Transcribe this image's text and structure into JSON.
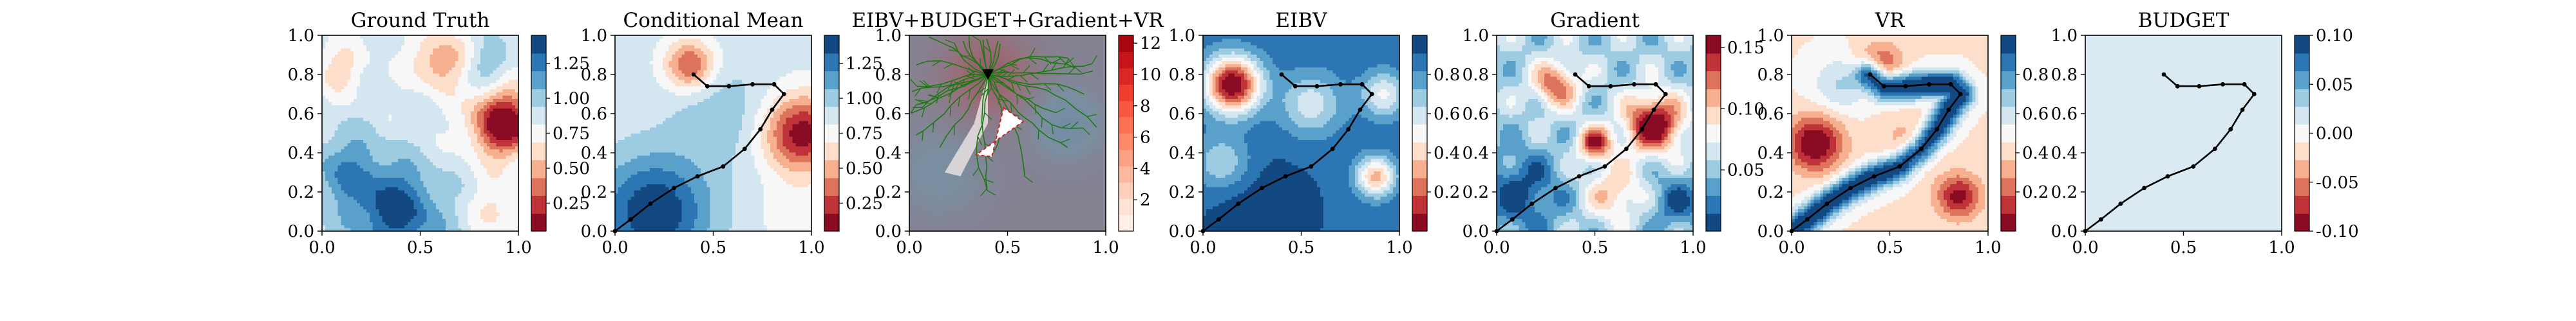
{
  "chart_data": [
    {
      "type": "heatmap",
      "title": "Ground Truth",
      "xlim": [
        0,
        1
      ],
      "ylim": [
        0,
        1
      ],
      "xticks": [
        "0.0",
        "0.5",
        "1.0"
      ],
      "yticks": [
        "0.0",
        "0.2",
        "0.4",
        "0.6",
        "0.8",
        "1.0"
      ],
      "colormap": "RdBu",
      "colorbar": {
        "ticks": [
          "0.25",
          "0.50",
          "0.75",
          "1.00",
          "1.25"
        ],
        "range": [
          0.05,
          1.45
        ]
      },
      "features": [
        {
          "kind": "low",
          "x": 0.92,
          "y": 0.55,
          "value": 0.2,
          "note": "red hot spot right"
        },
        {
          "kind": "low",
          "x": 0.62,
          "y": 0.86,
          "value": 0.6,
          "note": "light red top middle"
        },
        {
          "kind": "high",
          "x": 0.38,
          "y": 0.12,
          "value": 1.4,
          "note": "dark blue bottom"
        }
      ]
    },
    {
      "type": "heatmap",
      "title": "Conditional Mean",
      "xlim": [
        0,
        1
      ],
      "ylim": [
        0,
        1
      ],
      "xticks": [
        "0.0",
        "0.5",
        "1.0"
      ],
      "yticks": [
        "0.0",
        "0.2",
        "0.4",
        "0.6",
        "0.8",
        "1.0"
      ],
      "colormap": "RdBu",
      "colorbar": {
        "ticks": [
          "0.25",
          "0.50",
          "0.75",
          "1.00",
          "1.25"
        ],
        "range": [
          0.05,
          1.45
        ]
      },
      "path": [
        [
          0.0,
          0.0
        ],
        [
          0.08,
          0.06
        ],
        [
          0.18,
          0.14
        ],
        [
          0.3,
          0.22
        ],
        [
          0.42,
          0.28
        ],
        [
          0.55,
          0.33
        ],
        [
          0.66,
          0.42
        ],
        [
          0.74,
          0.52
        ],
        [
          0.8,
          0.62
        ],
        [
          0.86,
          0.7
        ],
        [
          0.81,
          0.75
        ],
        [
          0.7,
          0.75
        ],
        [
          0.58,
          0.74
        ],
        [
          0.47,
          0.74
        ],
        [
          0.4,
          0.8
        ]
      ]
    },
    {
      "type": "heatmap",
      "title": "EIBV+BUDGET+Gradient+VR",
      "xlim": [
        0,
        1
      ],
      "ylim": [
        0,
        1
      ],
      "xticks": [
        "0.0",
        "0.5",
        "1.0"
      ],
      "yticks": [
        "0.0",
        "0.2",
        "0.4",
        "0.6",
        "0.8",
        "1.0"
      ],
      "colormap": "Reds",
      "colorbar": {
        "ticks": [
          "2",
          "4",
          "6",
          "8",
          "10",
          "12"
        ],
        "range": [
          0,
          12.5
        ]
      },
      "annotations": [
        "green tree of candidate paths rooted near (0.40, 0.80)",
        "red dashed triangle near (0.38, 0.50)"
      ]
    },
    {
      "type": "heatmap",
      "title": "EIBV",
      "xlim": [
        0,
        1
      ],
      "ylim": [
        0,
        1
      ],
      "xticks": [
        "0.0",
        "0.5",
        "1.0"
      ],
      "yticks": [
        "0.0",
        "0.2",
        "0.4",
        "0.6",
        "0.8",
        "1.0"
      ],
      "colormap": "RdBu",
      "colorbar": {
        "ticks": [
          "0.2",
          "0.4",
          "0.6",
          "0.8"
        ],
        "range": [
          0.0,
          1.0
        ]
      }
    },
    {
      "type": "heatmap",
      "title": "Gradient",
      "xlim": [
        0,
        1
      ],
      "ylim": [
        0,
        1
      ],
      "xticks": [
        "0.0",
        "0.5",
        "1.0"
      ],
      "yticks": [
        "0.0",
        "0.2",
        "0.4",
        "0.6",
        "0.8",
        "1.0"
      ],
      "colormap": "RdBu",
      "colorbar": {
        "ticks": [
          "0.05",
          "0.10",
          "0.15"
        ],
        "range": [
          0.0,
          0.16
        ]
      }
    },
    {
      "type": "heatmap",
      "title": "VR",
      "xlim": [
        0,
        1
      ],
      "ylim": [
        0,
        1
      ],
      "xticks": [
        "0.0",
        "0.5",
        "1.0"
      ],
      "yticks": [
        "0.0",
        "0.2",
        "0.4",
        "0.6",
        "0.8",
        "1.0"
      ],
      "colormap": "RdBu",
      "colorbar": {
        "ticks": [
          "0.2",
          "0.4",
          "0.6",
          "0.8"
        ],
        "range": [
          0.0,
          1.0
        ]
      }
    },
    {
      "type": "line",
      "title": "BUDGET",
      "xlim": [
        0,
        1
      ],
      "ylim": [
        0,
        1
      ],
      "xticks": [
        "0.0",
        "0.5",
        "1.0"
      ],
      "yticks": [
        "0.0",
        "0.2",
        "0.4",
        "0.6",
        "0.8",
        "1.0"
      ],
      "colormap": "RdBu",
      "colorbar": {
        "ticks": [
          "-0.10",
          "-0.05",
          "0.00",
          "0.05",
          "0.10"
        ],
        "range": [
          -0.1,
          0.1
        ]
      },
      "background_value": 0.0,
      "path": [
        [
          0.0,
          0.0
        ],
        [
          0.08,
          0.06
        ],
        [
          0.18,
          0.14
        ],
        [
          0.3,
          0.22
        ],
        [
          0.42,
          0.28
        ],
        [
          0.55,
          0.33
        ],
        [
          0.66,
          0.42
        ],
        [
          0.74,
          0.52
        ],
        [
          0.8,
          0.62
        ],
        [
          0.86,
          0.7
        ],
        [
          0.81,
          0.75
        ],
        [
          0.7,
          0.75
        ],
        [
          0.58,
          0.74
        ],
        [
          0.47,
          0.74
        ],
        [
          0.4,
          0.8
        ]
      ]
    }
  ],
  "colors": {
    "rdbu": [
      "#67001f",
      "#b2182b",
      "#d6604d",
      "#f4a582",
      "#fddbc7",
      "#f7f7f7",
      "#d1e5f0",
      "#92c5de",
      "#4393c3",
      "#2166ac",
      "#053061"
    ],
    "reds": [
      "#fff5f0",
      "#fee0d2",
      "#fcbba1",
      "#fc9272",
      "#fb6a4a",
      "#ef3b2c",
      "#cb181d",
      "#99000d"
    ],
    "path": "#000000",
    "tree": "#1a7a10",
    "triangle": "#cc2222"
  }
}
